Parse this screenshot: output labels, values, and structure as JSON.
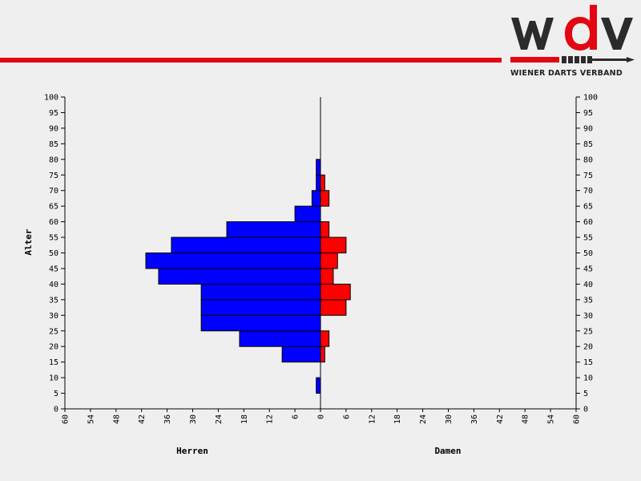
{
  "brand": {
    "logo_text": "wdv",
    "caption": "WIENER DARTS VERBAND",
    "colors": {
      "red": "#e30613",
      "dark": "#2b2b2b"
    }
  },
  "chart_data": {
    "type": "bar",
    "orientation": "horizontal",
    "subtype": "population-pyramid",
    "ylabel": "Alter",
    "left_label": "Herren",
    "right_label": "Damen",
    "y_ticks": [
      0,
      5,
      10,
      15,
      20,
      25,
      30,
      35,
      40,
      45,
      50,
      55,
      60,
      65,
      70,
      75,
      80,
      85,
      90,
      95,
      100
    ],
    "x_ticks": [
      60,
      54,
      48,
      42,
      36,
      30,
      24,
      18,
      12,
      6,
      0,
      6,
      12,
      18,
      24,
      30,
      36,
      42,
      48,
      54,
      60
    ],
    "xlim": [
      0,
      60
    ],
    "ylim": [
      0,
      100
    ],
    "series": [
      {
        "name": "Herren",
        "side": "left",
        "color": "#0000ff",
        "values": [
          {
            "age_from": 5,
            "age_to": 10,
            "count": 1
          },
          {
            "age_from": 15,
            "age_to": 20,
            "count": 9
          },
          {
            "age_from": 20,
            "age_to": 25,
            "count": 19
          },
          {
            "age_from": 25,
            "age_to": 30,
            "count": 28
          },
          {
            "age_from": 30,
            "age_to": 35,
            "count": 28
          },
          {
            "age_from": 35,
            "age_to": 40,
            "count": 28
          },
          {
            "age_from": 40,
            "age_to": 45,
            "count": 38
          },
          {
            "age_from": 45,
            "age_to": 50,
            "count": 41
          },
          {
            "age_from": 50,
            "age_to": 55,
            "count": 35
          },
          {
            "age_from": 55,
            "age_to": 60,
            "count": 22
          },
          {
            "age_from": 60,
            "age_to": 65,
            "count": 6
          },
          {
            "age_from": 65,
            "age_to": 70,
            "count": 2
          },
          {
            "age_from": 70,
            "age_to": 75,
            "count": 1
          },
          {
            "age_from": 75,
            "age_to": 80,
            "count": 1
          }
        ]
      },
      {
        "name": "Damen",
        "side": "right",
        "color": "#ff0000",
        "values": [
          {
            "age_from": 15,
            "age_to": 20,
            "count": 1
          },
          {
            "age_from": 20,
            "age_to": 25,
            "count": 2
          },
          {
            "age_from": 30,
            "age_to": 35,
            "count": 6
          },
          {
            "age_from": 35,
            "age_to": 40,
            "count": 7
          },
          {
            "age_from": 40,
            "age_to": 45,
            "count": 3
          },
          {
            "age_from": 45,
            "age_to": 50,
            "count": 4
          },
          {
            "age_from": 50,
            "age_to": 55,
            "count": 6
          },
          {
            "age_from": 55,
            "age_to": 60,
            "count": 2
          },
          {
            "age_from": 65,
            "age_to": 70,
            "count": 2
          },
          {
            "age_from": 70,
            "age_to": 75,
            "count": 1
          }
        ]
      }
    ]
  }
}
